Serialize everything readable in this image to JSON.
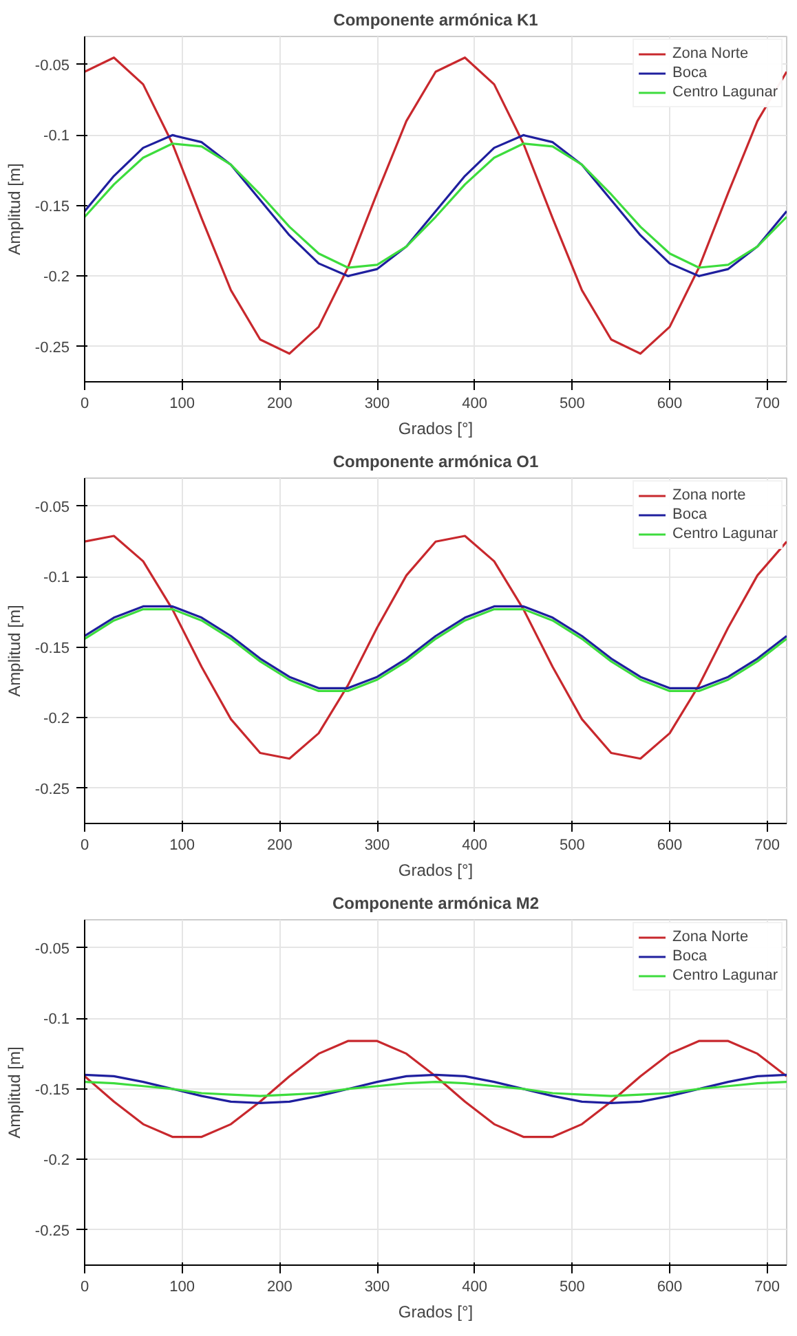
{
  "chart_data": [
    {
      "type": "line",
      "title": "Componente armónica K1",
      "xlabel": "Grados [°]",
      "ylabel": "Amplitud [m]",
      "x": [
        0,
        30,
        60,
        90,
        120,
        150,
        180,
        210,
        240,
        270,
        300,
        330,
        360,
        390,
        420,
        450,
        480,
        510,
        540,
        570,
        600,
        630,
        660,
        690,
        720
      ],
      "series": [
        {
          "name": "Zona Norte",
          "color": "#c8282d",
          "values": [
            -0.055,
            -0.045,
            -0.064,
            -0.106,
            -0.159,
            -0.21,
            -0.245,
            -0.255,
            -0.236,
            -0.194,
            -0.141,
            -0.09,
            -0.055,
            -0.045,
            -0.064,
            -0.106,
            -0.159,
            -0.21,
            -0.245,
            -0.255,
            -0.236,
            -0.194,
            -0.141,
            -0.09,
            -0.055
          ]
        },
        {
          "name": "Boca",
          "color": "#1f1f9e",
          "values": [
            -0.154,
            -0.129,
            -0.109,
            -0.1,
            -0.105,
            -0.121,
            -0.146,
            -0.171,
            -0.191,
            -0.2,
            -0.195,
            -0.179,
            -0.154,
            -0.129,
            -0.109,
            -0.1,
            -0.105,
            -0.121,
            -0.146,
            -0.171,
            -0.191,
            -0.2,
            -0.195,
            -0.179,
            -0.154
          ]
        },
        {
          "name": "Centro Lagunar",
          "color": "#3ddc3d",
          "values": [
            -0.158,
            -0.135,
            -0.116,
            -0.106,
            -0.108,
            -0.121,
            -0.142,
            -0.165,
            -0.184,
            -0.194,
            -0.192,
            -0.179,
            -0.158,
            -0.135,
            -0.116,
            -0.106,
            -0.108,
            -0.121,
            -0.142,
            -0.165,
            -0.184,
            -0.194,
            -0.192,
            -0.179,
            -0.158
          ]
        }
      ],
      "xlim": [
        0,
        720
      ],
      "ylim": [
        -0.275,
        -0.03
      ],
      "xticks": [
        0,
        100,
        200,
        300,
        400,
        500,
        600,
        700
      ],
      "yticks": [
        -0.25,
        -0.2,
        -0.15,
        -0.1,
        -0.05
      ],
      "grid": true,
      "legend": "top right",
      "line_style": "solid"
    },
    {
      "type": "line",
      "title": "Componente armónica O1",
      "xlabel": "Grados [°]",
      "ylabel": "Amplitud [m]",
      "x": [
        0,
        30,
        60,
        90,
        120,
        150,
        180,
        210,
        240,
        270,
        300,
        330,
        360,
        390,
        420,
        450,
        480,
        510,
        540,
        570,
        600,
        630,
        660,
        690,
        720
      ],
      "series": [
        {
          "name": "Zona norte",
          "color": "#c8282d",
          "values": [
            -0.075,
            -0.071,
            -0.089,
            -0.123,
            -0.164,
            -0.201,
            -0.225,
            -0.229,
            -0.211,
            -0.177,
            -0.136,
            -0.099,
            -0.075,
            -0.071,
            -0.089,
            -0.123,
            -0.164,
            -0.201,
            -0.225,
            -0.229,
            -0.211,
            -0.177,
            -0.136,
            -0.099,
            -0.075
          ]
        },
        {
          "name": "Boca",
          "color": "#1f1f9e",
          "values": [
            -0.142,
            -0.129,
            -0.121,
            -0.121,
            -0.129,
            -0.142,
            -0.158,
            -0.171,
            -0.179,
            -0.179,
            -0.171,
            -0.158,
            -0.142,
            -0.129,
            -0.121,
            -0.121,
            -0.129,
            -0.142,
            -0.158,
            -0.171,
            -0.179,
            -0.179,
            -0.171,
            -0.158,
            -0.142
          ]
        },
        {
          "name": "Centro Lagunar",
          "color": "#3ddc3d",
          "values": [
            -0.144,
            -0.131,
            -0.123,
            -0.123,
            -0.131,
            -0.144,
            -0.16,
            -0.173,
            -0.181,
            -0.181,
            -0.173,
            -0.16,
            -0.144,
            -0.131,
            -0.123,
            -0.123,
            -0.131,
            -0.144,
            -0.16,
            -0.173,
            -0.181,
            -0.181,
            -0.173,
            -0.16,
            -0.144
          ]
        }
      ],
      "xlim": [
        0,
        720
      ],
      "ylim": [
        -0.275,
        -0.03
      ],
      "xticks": [
        0,
        100,
        200,
        300,
        400,
        500,
        600,
        700
      ],
      "yticks": [
        -0.25,
        -0.2,
        -0.15,
        -0.1,
        -0.05
      ],
      "grid": true,
      "legend": "top right",
      "line_style": "solid"
    },
    {
      "type": "line",
      "title": "Componente armónica M2",
      "xlabel": "Grados [°]",
      "ylabel": "Amplitud [m]",
      "x": [
        0,
        30,
        60,
        90,
        120,
        150,
        180,
        210,
        240,
        270,
        300,
        330,
        360,
        390,
        420,
        450,
        480,
        510,
        540,
        570,
        600,
        630,
        660,
        690,
        720
      ],
      "series": [
        {
          "name": "Zona Norte",
          "color": "#c8282d",
          "values": [
            -0.141,
            -0.159,
            -0.175,
            -0.184,
            -0.184,
            -0.175,
            -0.159,
            -0.141,
            -0.125,
            -0.116,
            -0.116,
            -0.125,
            -0.141,
            -0.159,
            -0.175,
            -0.184,
            -0.184,
            -0.175,
            -0.159,
            -0.141,
            -0.125,
            -0.116,
            -0.116,
            -0.125,
            -0.141
          ]
        },
        {
          "name": "Boca",
          "color": "#1f1f9e",
          "values": [
            -0.14,
            -0.141,
            -0.145,
            -0.15,
            -0.155,
            -0.159,
            -0.16,
            -0.159,
            -0.155,
            -0.15,
            -0.145,
            -0.141,
            -0.14,
            -0.141,
            -0.145,
            -0.15,
            -0.155,
            -0.159,
            -0.16,
            -0.159,
            -0.155,
            -0.15,
            -0.145,
            -0.141,
            -0.14
          ]
        },
        {
          "name": "Centro Lagunar",
          "color": "#3ddc3d",
          "values": [
            -0.145,
            -0.146,
            -0.148,
            -0.15,
            -0.153,
            -0.154,
            -0.155,
            -0.154,
            -0.153,
            -0.15,
            -0.148,
            -0.146,
            -0.145,
            -0.146,
            -0.148,
            -0.15,
            -0.153,
            -0.154,
            -0.155,
            -0.154,
            -0.153,
            -0.15,
            -0.148,
            -0.146,
            -0.145
          ]
        }
      ],
      "xlim": [
        0,
        720
      ],
      "ylim": [
        -0.275,
        -0.03
      ],
      "xticks": [
        0,
        100,
        200,
        300,
        400,
        500,
        600,
        700
      ],
      "yticks": [
        -0.25,
        -0.2,
        -0.15,
        -0.1,
        -0.05
      ],
      "grid": true,
      "legend": "top right",
      "line_style": "solid"
    }
  ]
}
